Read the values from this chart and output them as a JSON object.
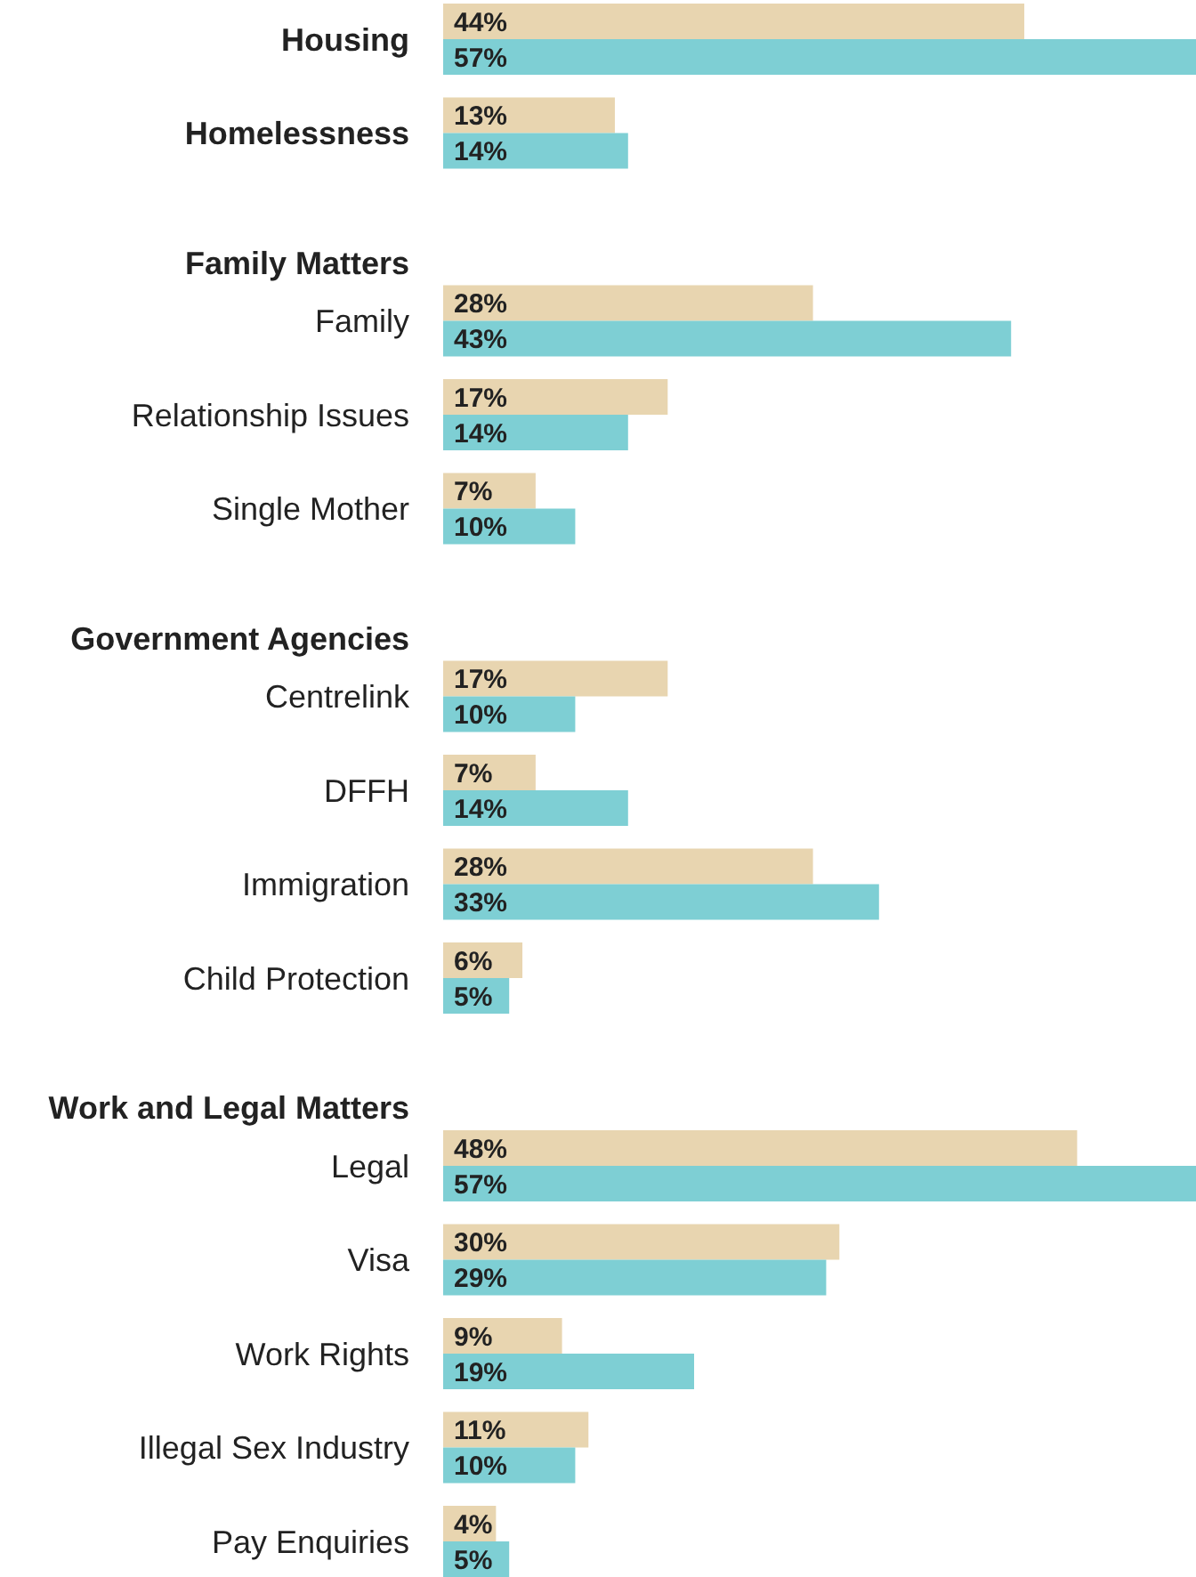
{
  "chart_data": {
    "type": "bar",
    "orientation": "horizontal",
    "categories": [
      "Housing",
      "Homelessness",
      "Family Matters",
      "Family",
      "Relationship Issues",
      "Single Mother",
      "Government Agencies",
      "Centrelink",
      "DFFH",
      "Immigration",
      "Child Protection",
      "Work and Legal Matters",
      "Legal",
      "Visa",
      "Work Rights",
      "Illegal Sex Industry",
      "Pay Enquiries"
    ],
    "series": [
      {
        "color": "#e8d5b0",
        "values": [
          44,
          13,
          null,
          28,
          17,
          7,
          null,
          17,
          7,
          28,
          6,
          null,
          48,
          30,
          9,
          11,
          4
        ],
        "value_labels": [
          "44%",
          "13%",
          null,
          "28%",
          "17%",
          "7%",
          null,
          "17%",
          "7%",
          "28%",
          "6%",
          null,
          "48%",
          "30%",
          "9%",
          "11%",
          "4%"
        ]
      },
      {
        "color": "#7ecfd4",
        "values": [
          57,
          14,
          null,
          43,
          14,
          10,
          null,
          10,
          14,
          33,
          5,
          null,
          57,
          29,
          19,
          10,
          5
        ],
        "value_labels": [
          "57%",
          "14%",
          null,
          "43%",
          "14%",
          "10%",
          null,
          "10%",
          "14%",
          "33%",
          "5%",
          null,
          "57%",
          "29%",
          "19%",
          "10%",
          "5%"
        ]
      }
    ]
  }
}
